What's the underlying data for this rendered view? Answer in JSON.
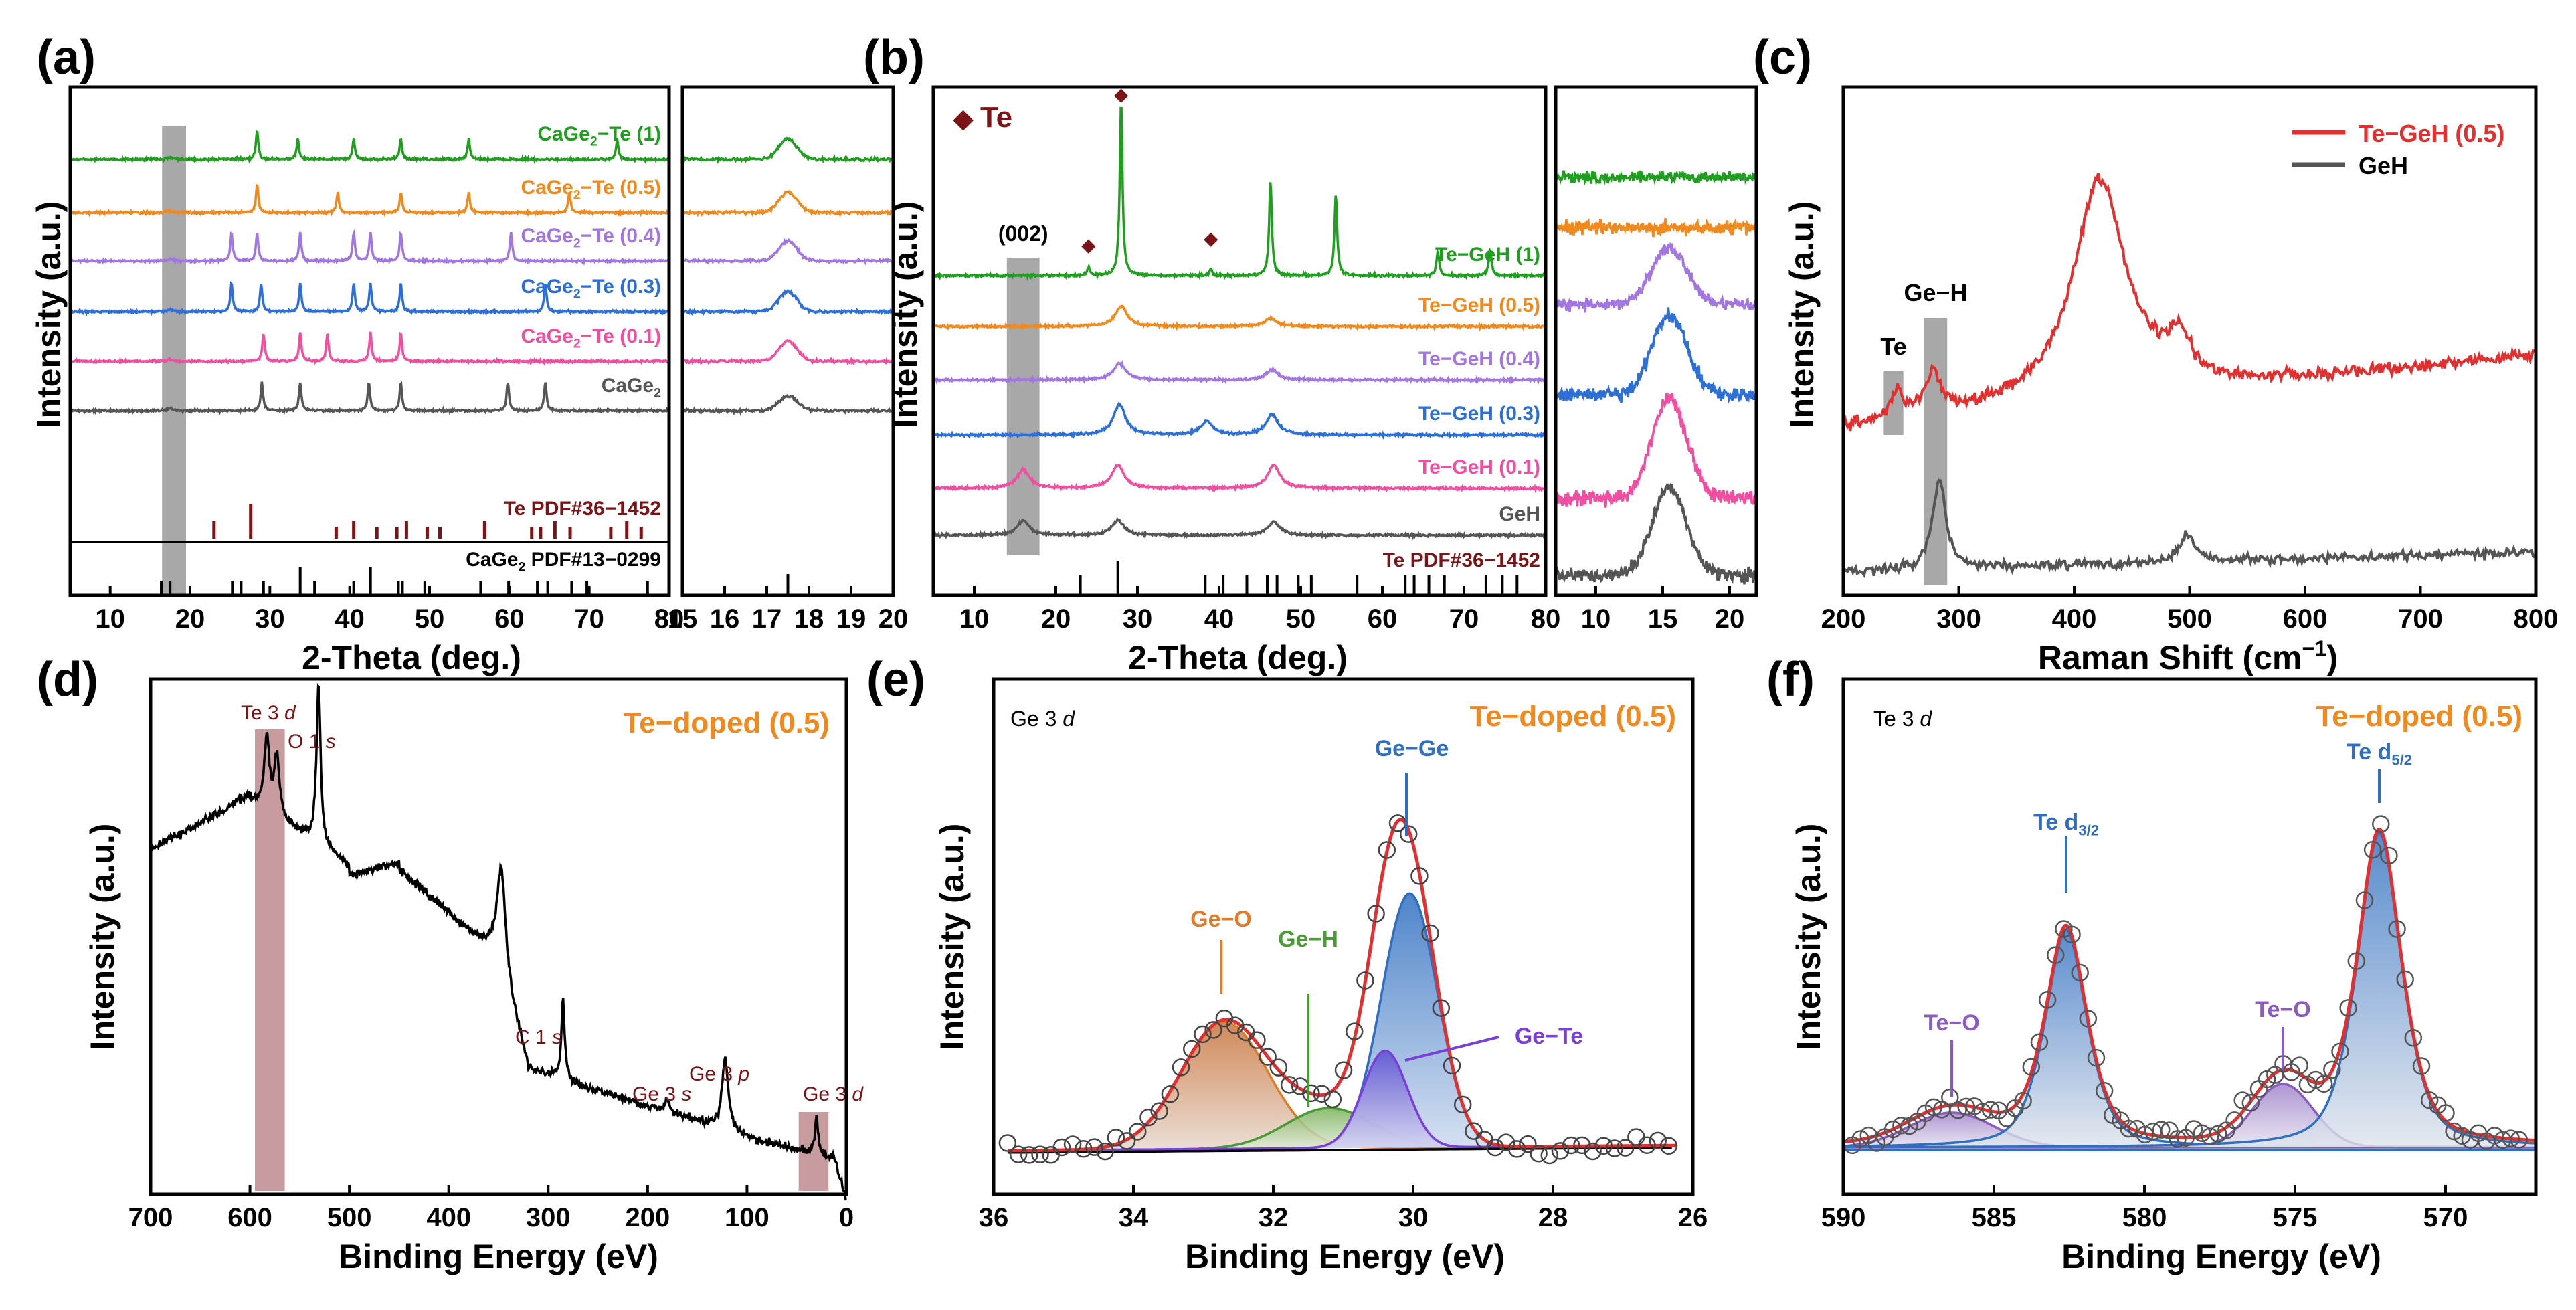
{
  "colors": {
    "green": "#1f9e1f",
    "orange": "#f08a1e",
    "purple": "#a276e0",
    "blue": "#2e6fd6",
    "pink": "#ee4fa0",
    "gray": "#555555",
    "darkred": "#7b1417",
    "red": "#e03030",
    "fit_blue": "#2f6fc1",
    "fit_orange": "#e07b2a",
    "fit_green": "#4a9a35",
    "fit_violet": "#7a3fd8",
    "teo_violet": "#8a5cc0"
  },
  "chart_data": [
    {
      "panel": "(a)",
      "type": "line",
      "xlabel": "2-Theta (deg.)",
      "ylabel": "Intensity (a.u.)",
      "xlim_main": [
        5,
        80
      ],
      "xticks_main": [
        "10",
        "20",
        "30",
        "40",
        "50",
        "60",
        "70",
        "80"
      ],
      "xlim_zoom": [
        15,
        20
      ],
      "xticks_zoom": [
        "15",
        "16",
        "17",
        "18",
        "19",
        "20"
      ],
      "highlight_band": [
        16.5,
        19.5
      ],
      "series": [
        {
          "name": "CaGe2−Te (1)",
          "label_main": "CaGe",
          "label_sub": "2",
          "label_tail": "−Te (1)",
          "color_key": "green",
          "peaks": [
            28.4,
            33.5,
            40.5,
            46.4,
            54.9,
            73.5
          ]
        },
        {
          "name": "CaGe2−Te (0.5)",
          "label_main": "CaGe",
          "label_sub": "2",
          "label_tail": "−Te (0.5)",
          "color_key": "orange",
          "peaks": [
            28.4,
            38.5,
            46.4,
            54.9,
            67.5
          ]
        },
        {
          "name": "CaGe2−Te (0.4)",
          "label_main": "CaGe",
          "label_sub": "2",
          "label_tail": "−Te (0.4)",
          "color_key": "purple",
          "peaks": [
            25.2,
            28.4,
            33.8,
            40.5,
            42.6,
            46.4,
            60.2
          ]
        },
        {
          "name": "CaGe2−Te (0.3)",
          "label_main": "CaGe",
          "label_sub": "2",
          "label_tail": "−Te (0.3)",
          "color_key": "blue",
          "peaks": [
            25.2,
            28.9,
            33.8,
            40.5,
            42.6,
            46.4,
            64.5
          ]
        },
        {
          "name": "CaGe2−Te (0.1)",
          "label_main": "CaGe",
          "label_sub": "2",
          "label_tail": "−Te (0.1)",
          "color_key": "pink",
          "peaks": [
            29.2,
            33.8,
            37.2,
            42.6,
            46.4
          ]
        },
        {
          "name": "CaGe2",
          "label_main": "CaGe",
          "label_sub": "2",
          "label_tail": "",
          "color_key": "gray",
          "peaks": [
            29.0,
            33.8,
            42.4,
            46.4,
            59.8,
            64.5
          ]
        }
      ],
      "references": [
        {
          "name": "Te PDF#36−1452",
          "color_key": "darkred",
          "lines": [
            23.0,
            27.6,
            38.3,
            40.5,
            43.4,
            45.9,
            47.1,
            49.7,
            51.3,
            56.9,
            62.8,
            63.9,
            65.7,
            67.6,
            72.7,
            74.7,
            76.5
          ]
        },
        {
          "name": "CaGe2 PDF#13−0299",
          "label_main": "CaGe",
          "label_sub": "2",
          "label_tail": " PDF#13−0299",
          "color_key": "gray",
          "lines": [
            16.4,
            17.5,
            25.3,
            26.4,
            29.2,
            33.8,
            35.6,
            40.5,
            42.6,
            46.1,
            46.6,
            49.4,
            56.4,
            59.9,
            63.5,
            64.8,
            67.8,
            69.7,
            77.3
          ]
        }
      ]
    },
    {
      "panel": "(b)",
      "type": "line",
      "xlabel": "2-Theta (deg.)",
      "ylabel": "Intensity (a.u.)",
      "xlim_main": [
        5,
        80
      ],
      "xticks_main": [
        "10",
        "20",
        "30",
        "40",
        "50",
        "60",
        "70",
        "80"
      ],
      "xlim_zoom": [
        7,
        22
      ],
      "xticks_zoom": [
        "10",
        "15",
        "20"
      ],
      "highlight_band": [
        14,
        18
      ],
      "marker_legend": "Te",
      "marker_peaks": [
        24.0,
        28.0,
        39.0
      ],
      "band_label": "(002)",
      "series": [
        {
          "name": "Te−GeH (1)",
          "color_key": "green",
          "peaks": [
            28.0,
            46.3,
            54.3,
            66.8,
            73.2
          ]
        },
        {
          "name": "Te−GeH (0.5)",
          "color_key": "orange",
          "peaks": [
            28.0,
            46.3
          ]
        },
        {
          "name": "Te−GeH (0.4)",
          "color_key": "purple",
          "peaks": [
            27.8,
            46.5
          ]
        },
        {
          "name": "Te−GeH (0.3)",
          "color_key": "blue",
          "peaks": [
            27.8,
            38.5,
            46.5
          ]
        },
        {
          "name": "Te−GeH (0.1)",
          "color_key": "pink",
          "peaks": [
            16.0,
            27.6,
            46.7
          ]
        },
        {
          "name": "GeH",
          "color_key": "gray",
          "peaks": [
            16.0,
            27.6,
            46.7
          ]
        }
      ],
      "references": [
        {
          "name": "Te PDF#36−1452",
          "color_key": "darkred",
          "lines": [
            23.0,
            27.6,
            38.3,
            40.5,
            43.4,
            45.9,
            47.1,
            49.7,
            51.3,
            56.9,
            62.8,
            63.9,
            65.7,
            67.6,
            72.7,
            74.7,
            76.5
          ]
        }
      ]
    },
    {
      "panel": "(c)",
      "type": "line",
      "xlabel": "Raman Shift (cm",
      "xlabel_sup": "−1",
      "xlabel_tail": ")",
      "ylabel": "Intensity (a.u.)",
      "xlim": [
        200,
        800
      ],
      "xticks": [
        "200",
        "300",
        "400",
        "500",
        "600",
        "700",
        "800"
      ],
      "series": [
        {
          "name": "Te−GeH (0.5)",
          "color_key": "red",
          "peaks": [
            {
              "x": 247,
              "h": 0.2
            },
            {
              "x": 278,
              "h": 0.35
            },
            {
              "x": 422,
              "h": 1.0
            },
            {
              "x": 490,
              "h": 0.3
            }
          ]
        },
        {
          "name": "GeH",
          "color_key": "gray",
          "peaks": [
            {
              "x": 283,
              "h": 1.0
            },
            {
              "x": 498,
              "h": 0.3
            }
          ]
        }
      ],
      "bands": [
        {
          "label": "Te",
          "range": [
            235,
            252
          ]
        },
        {
          "label": "Ge−H",
          "range": [
            270,
            290
          ]
        }
      ]
    },
    {
      "panel": "(d)",
      "type": "line",
      "title": "Te−doped (0.5)",
      "xlabel": "Binding Energy (eV)",
      "ylabel": "Intensity (a.u.)",
      "xlim": [
        700,
        0
      ],
      "xticks": [
        "700",
        "600",
        "500",
        "400",
        "300",
        "200",
        "100",
        "0"
      ],
      "peaks": [
        {
          "label": "Te 3",
          "orbital": "d",
          "x": 583
        },
        {
          "label": "O 1",
          "orbital": "s",
          "x": 531
        },
        {
          "label": "C 1",
          "orbital": "s",
          "x": 285
        },
        {
          "label": "Ge 3",
          "orbital": "s",
          "x": 180
        },
        {
          "label": "Ge 3",
          "orbital": "p",
          "x": 122
        },
        {
          "label": "Ge 3",
          "orbital": "d",
          "x": 30
        }
      ]
    },
    {
      "panel": "(e)",
      "type": "scatter",
      "title": "Te−doped (0.5)",
      "region": "Ge 3",
      "region_orbital": "d",
      "xlabel": "Binding Energy (eV)",
      "ylabel": "Intensity (a.u.)",
      "xlim": [
        36,
        26
      ],
      "xticks": [
        "36",
        "34",
        "32",
        "30",
        "28",
        "26"
      ],
      "components": [
        {
          "name": "Ge−O",
          "center": 32.7,
          "color_key": "fit_orange"
        },
        {
          "name": "Ge−H",
          "center": 31.4,
          "color_key": "fit_green"
        },
        {
          "name": "Ge−Ge",
          "center": 30.0,
          "color_key": "fit_blue"
        },
        {
          "name": "Ge−Te",
          "center": 30.4,
          "color_key": "fit_violet"
        }
      ]
    },
    {
      "panel": "(f)",
      "type": "scatter",
      "title": "Te−doped (0.5)",
      "region": "Te 3",
      "region_orbital": "d",
      "xlabel": "Binding Energy (eV)",
      "ylabel": "Intensity (a.u.)",
      "xlim": [
        590,
        567
      ],
      "xticks": [
        "590",
        "585",
        "580",
        "575",
        "570"
      ],
      "components": [
        {
          "name": "Te−O",
          "center": 586.4,
          "color_key": "teo_violet"
        },
        {
          "name": "Te d",
          "sub": "3/2",
          "center": 582.6,
          "color_key": "fit_blue"
        },
        {
          "name": "Te−O",
          "center": 575.4,
          "color_key": "teo_violet"
        },
        {
          "name": "Te d",
          "sub": "5/2",
          "center": 572.2,
          "color_key": "fit_blue"
        }
      ]
    }
  ]
}
